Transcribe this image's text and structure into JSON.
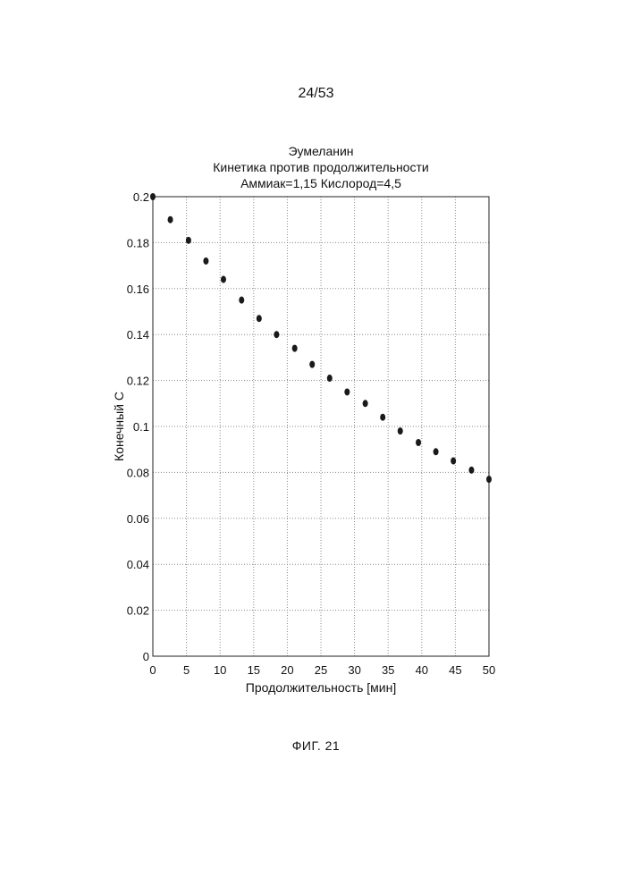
{
  "page": {
    "number": "24/53",
    "figure_caption": "ФИГ. 21"
  },
  "chart_data": {
    "type": "scatter",
    "title_lines": [
      "Эумеланин",
      "Кинетика против продолжительности",
      "Аммиак=1,15 Кислород=4,5"
    ],
    "xlabel": "Продолжительность [мин]",
    "ylabel": "Конечный С",
    "xlim": [
      0,
      50
    ],
    "ylim": [
      0,
      0.2
    ],
    "xticks": [
      0,
      5,
      10,
      15,
      20,
      25,
      30,
      35,
      40,
      45,
      50
    ],
    "xtick_labels": [
      "0",
      "5",
      "10",
      "15",
      "20",
      "25",
      "30",
      "35",
      "40",
      "45",
      "50"
    ],
    "yticks": [
      0,
      0.02,
      0.04,
      0.06,
      0.08,
      0.1,
      0.12,
      0.14,
      0.16,
      0.18,
      0.2
    ],
    "ytick_labels": [
      "0",
      "0.02",
      "0.04",
      "0.06",
      "0.08",
      "0.1",
      "0.12",
      "0.14",
      "0.16",
      "0.18",
      "0.2"
    ],
    "grid": true,
    "series": [
      {
        "name": "Эумеланин",
        "x": [
          0,
          2.6,
          5.3,
          7.9,
          10.5,
          13.2,
          15.8,
          18.4,
          21.1,
          23.7,
          26.3,
          28.9,
          31.6,
          34.2,
          36.8,
          39.5,
          42.1,
          44.7,
          47.4,
          50
        ],
        "y": [
          0.2,
          0.19,
          0.181,
          0.172,
          0.164,
          0.155,
          0.147,
          0.14,
          0.134,
          0.127,
          0.121,
          0.115,
          0.11,
          0.104,
          0.098,
          0.093,
          0.089,
          0.085,
          0.081,
          0.077
        ]
      }
    ]
  }
}
